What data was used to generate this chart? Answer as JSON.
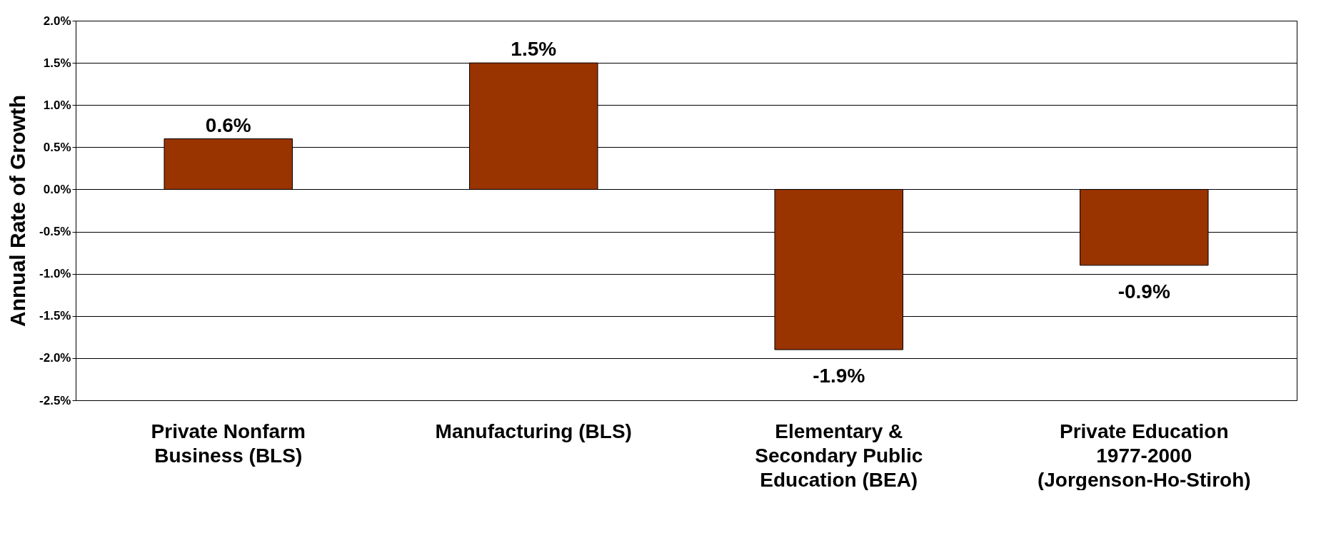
{
  "chart_data": {
    "type": "bar",
    "ylabel": "Annual Rate of Growth",
    "categories": [
      "Private Nonfarm Business (BLS)",
      "Manufacturing (BLS)",
      "Elementary & Secondary Public Education (BEA)",
      "Private Education 1977-2000 (Jorgenson-Ho-Stiroh)"
    ],
    "values": [
      0.6,
      1.5,
      -1.9,
      -0.9
    ],
    "value_labels": [
      "0.6%",
      "1.5%",
      "-1.9%",
      "-0.9%"
    ],
    "color": "#993300",
    "ylim": [
      -2.5,
      2.0
    ],
    "yticks": [
      {
        "value": -2.5,
        "label": "-2.5%"
      },
      {
        "value": -2.0,
        "label": "-2.0%"
      },
      {
        "value": -1.5,
        "label": "-1.5%"
      },
      {
        "value": -1.0,
        "label": "-1.0%"
      },
      {
        "value": -0.5,
        "label": "-0.5%"
      },
      {
        "value": 0,
        "label": "0.0%"
      },
      {
        "value": 0.5,
        "label": "0.5%"
      },
      {
        "value": 1.0,
        "label": "1.0%"
      },
      {
        "value": 1.5,
        "label": "1.5%"
      },
      {
        "value": 2.0,
        "label": "2.0%"
      }
    ],
    "grid": "y"
  }
}
